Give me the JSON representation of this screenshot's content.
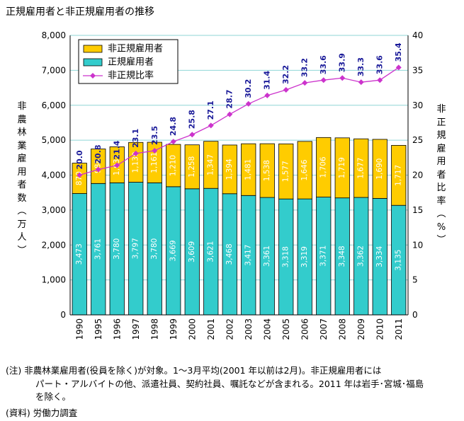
{
  "title": "正規雇用者と非正規雇用者の推移",
  "chart_data": {
    "type": "bar",
    "title": "正規雇用者と非正規雇用者の推移",
    "ylabel": "非農林業雇用者数（万人）",
    "y2label": "非正規雇用者比率（%）",
    "categories": [
      "1990",
      "1995",
      "1996",
      "1997",
      "1998",
      "1999",
      "2000",
      "2001",
      "2002",
      "2003",
      "2004",
      "2005",
      "2006",
      "2007",
      "2008",
      "2009",
      "2010",
      "2011"
    ],
    "ylim": [
      0,
      8000
    ],
    "y2lim": [
      0,
      40
    ],
    "yticks": [
      "0",
      "1,000",
      "2,000",
      "3,000",
      "4,000",
      "5,000",
      "6,000",
      "7,000",
      "8,000"
    ],
    "y2ticks": [
      "0",
      "5",
      "10",
      "15",
      "20",
      "25",
      "30",
      "35",
      "40"
    ],
    "grid": true,
    "legend_position": "top-left",
    "colors": {
      "regular": "#33cccc",
      "nonregular": "#ffcc00",
      "ratio": "#cc33cc",
      "ratio_label": "#1a1a99"
    },
    "series": [
      {
        "name": "正規雇用者",
        "kind": "bar",
        "values": [
          3473,
          3761,
          3780,
          3797,
          3780,
          3669,
          3609,
          3621,
          3468,
          3417,
          3361,
          3318,
          3319,
          3371,
          3348,
          3362,
          3334,
          3135
        ],
        "labels": [
          "3,473",
          "3,761",
          "3,780",
          "3,797",
          "3,780",
          "3,669",
          "3,609",
          "3,621",
          "3,468",
          "3,417",
          "3,361",
          "3,318",
          "3,319",
          "3,371",
          "3,348",
          "3,362",
          "3,334",
          "3,135"
        ]
      },
      {
        "name": "非正規雇用者",
        "kind": "bar",
        "values": [
          870,
          988,
          1031,
          1139,
          1161,
          1210,
          1258,
          1347,
          1394,
          1481,
          1538,
          1577,
          1646,
          1706,
          1719,
          1677,
          1690,
          1717
        ],
        "labels": [
          "870",
          "988",
          "1,031",
          "1,139",
          "1,161",
          "1,210",
          "1,258",
          "1,347",
          "1,394",
          "1,481",
          "1,538",
          "1,577",
          "1,646",
          "1,706",
          "1,719",
          "1,677",
          "1,690",
          "1,717"
        ]
      },
      {
        "name": "非正規比率",
        "kind": "line",
        "axis": "right",
        "values": [
          20.0,
          20.8,
          21.4,
          23.1,
          23.5,
          24.8,
          25.8,
          27.1,
          28.7,
          30.2,
          31.4,
          32.2,
          33.2,
          33.6,
          33.9,
          33.3,
          33.6,
          35.4
        ],
        "labels": [
          "20.0",
          "20.8",
          "21.4",
          "23.1",
          "23.5",
          "24.8",
          "25.8",
          "27.1",
          "28.7",
          "30.2",
          "31.4",
          "32.2",
          "33.2",
          "33.6",
          "33.9",
          "33.3",
          "33.6",
          "35.4"
        ]
      }
    ]
  },
  "notes": {
    "line1": "(注) 非農林業雇用者(役員を除く)が対象。1～3月平均(2001 年以前は2月)。非正規雇用者には",
    "line2": "パート・アルバイトの他、派遣社員、契約社員、嘱託などが含まれる。2011 年は岩手･宮城･福島",
    "line3": "を除く。",
    "source": "(資料) 労働力調査"
  }
}
